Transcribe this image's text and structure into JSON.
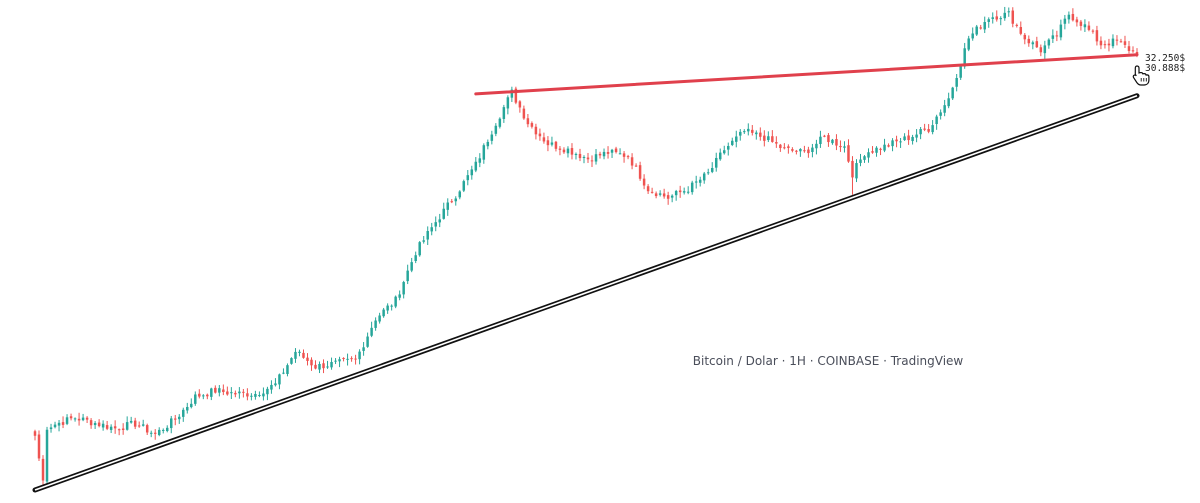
{
  "chart_data": {
    "type": "candlestick",
    "title": "",
    "watermark": "Bitcoin / Dolar · 1H · COINBASE · TradingView",
    "xlabel": "",
    "ylabel": "",
    "price_labels": [
      {
        "text": "32.250$",
        "value": 32250
      },
      {
        "text": "30.888$",
        "value": 30888
      }
    ],
    "colors": {
      "up": "#26a69a",
      "down": "#ef5350",
      "resistance_line": "#e0404c",
      "support_line": "#111111",
      "cursor": "#111111"
    },
    "ylim": [
      17800,
      33800
    ],
    "n_candles": 276,
    "key_points": [
      {
        "i": 0,
        "close": 19600
      },
      {
        "i": 2,
        "close": 18100
      },
      {
        "i": 3,
        "close": 19900
      },
      {
        "i": 10,
        "close": 20200
      },
      {
        "i": 20,
        "close": 19850
      },
      {
        "i": 25,
        "close": 20000
      },
      {
        "i": 30,
        "close": 19650
      },
      {
        "i": 35,
        "close": 20150
      },
      {
        "i": 40,
        "close": 20900
      },
      {
        "i": 45,
        "close": 21100
      },
      {
        "i": 50,
        "close": 21000
      },
      {
        "i": 55,
        "close": 21000
      },
      {
        "i": 60,
        "close": 21300
      },
      {
        "i": 65,
        "close": 22400
      },
      {
        "i": 70,
        "close": 21900
      },
      {
        "i": 75,
        "close": 22000
      },
      {
        "i": 80,
        "close": 22100
      },
      {
        "i": 85,
        "close": 23500
      },
      {
        "i": 90,
        "close": 24100
      },
      {
        "i": 95,
        "close": 25700
      },
      {
        "i": 100,
        "close": 26700
      },
      {
        "i": 105,
        "close": 27600
      },
      {
        "i": 110,
        "close": 28600
      },
      {
        "i": 115,
        "close": 30000
      },
      {
        "i": 119,
        "close": 31000
      },
      {
        "i": 123,
        "close": 30000
      },
      {
        "i": 128,
        "close": 29300
      },
      {
        "i": 133,
        "close": 29100
      },
      {
        "i": 138,
        "close": 28800
      },
      {
        "i": 143,
        "close": 29000
      },
      {
        "i": 148,
        "close": 28900
      },
      {
        "i": 153,
        "close": 27800
      },
      {
        "i": 158,
        "close": 27500
      },
      {
        "i": 163,
        "close": 27800
      },
      {
        "i": 168,
        "close": 28300
      },
      {
        "i": 172,
        "close": 29100
      },
      {
        "i": 177,
        "close": 29700
      },
      {
        "i": 182,
        "close": 29500
      },
      {
        "i": 187,
        "close": 29100
      },
      {
        "i": 192,
        "close": 29000
      },
      {
        "i": 197,
        "close": 29500
      },
      {
        "i": 202,
        "close": 29200
      },
      {
        "i": 204,
        "close": 28300
      },
      {
        "i": 207,
        "close": 29000
      },
      {
        "i": 212,
        "close": 29200
      },
      {
        "i": 218,
        "close": 29500
      },
      {
        "i": 223,
        "close": 29800
      },
      {
        "i": 228,
        "close": 30800
      },
      {
        "i": 233,
        "close": 32800
      },
      {
        "i": 238,
        "close": 33500
      },
      {
        "i": 243,
        "close": 33600
      },
      {
        "i": 247,
        "close": 32800
      },
      {
        "i": 251,
        "close": 32400
      },
      {
        "i": 255,
        "close": 32900
      },
      {
        "i": 258,
        "close": 33600
      },
      {
        "i": 262,
        "close": 33200
      },
      {
        "i": 266,
        "close": 32600
      },
      {
        "i": 270,
        "close": 32700
      },
      {
        "i": 275,
        "close": 32250
      }
    ],
    "trendlines": [
      {
        "name": "resistance",
        "from": {
          "i": 110,
          "price": 30950
        },
        "to": {
          "i": 275,
          "price": 32250
        }
      },
      {
        "name": "support",
        "from": {
          "i": 0,
          "price": 17800
        },
        "to": {
          "i": 275,
          "price": 30888
        }
      }
    ]
  },
  "cursor_icon": "hand-pointer-icon"
}
